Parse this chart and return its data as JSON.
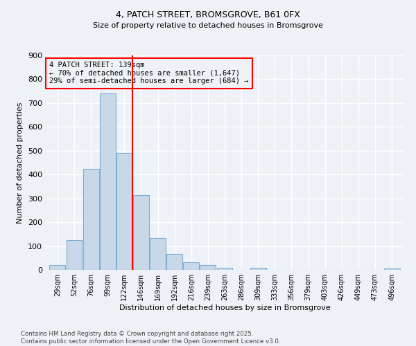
{
  "title1": "4, PATCH STREET, BROMSGROVE, B61 0FX",
  "title2": "Size of property relative to detached houses in Bromsgrove",
  "xlabel": "Distribution of detached houses by size in Bromsgrove",
  "ylabel": "Number of detached properties",
  "bar_color": "#c8d8e8",
  "bar_edge_color": "#7bafd4",
  "categories": [
    "29sqm",
    "52sqm",
    "76sqm",
    "99sqm",
    "122sqm",
    "146sqm",
    "169sqm",
    "192sqm",
    "216sqm",
    "239sqm",
    "263sqm",
    "286sqm",
    "309sqm",
    "333sqm",
    "356sqm",
    "379sqm",
    "403sqm",
    "426sqm",
    "449sqm",
    "473sqm",
    "496sqm"
  ],
  "values": [
    20,
    125,
    425,
    740,
    490,
    315,
    135,
    67,
    32,
    20,
    10,
    0,
    8,
    0,
    0,
    0,
    0,
    0,
    0,
    0,
    7
  ],
  "vline_x": 4.5,
  "annotation_title": "4 PATCH STREET: 139sqm",
  "annotation_line1": "← 70% of detached houses are smaller (1,647)",
  "annotation_line2": "29% of semi-detached houses are larger (684) →",
  "footnote1": "Contains HM Land Registry data © Crown copyright and database right 2025.",
  "footnote2": "Contains public sector information licensed under the Open Government Licence v3.0.",
  "bg_color": "#eef2f7",
  "grid_color": "#ffffff",
  "ylim": [
    0,
    900
  ],
  "yticks": [
    0,
    100,
    200,
    300,
    400,
    500,
    600,
    700,
    800,
    900
  ]
}
